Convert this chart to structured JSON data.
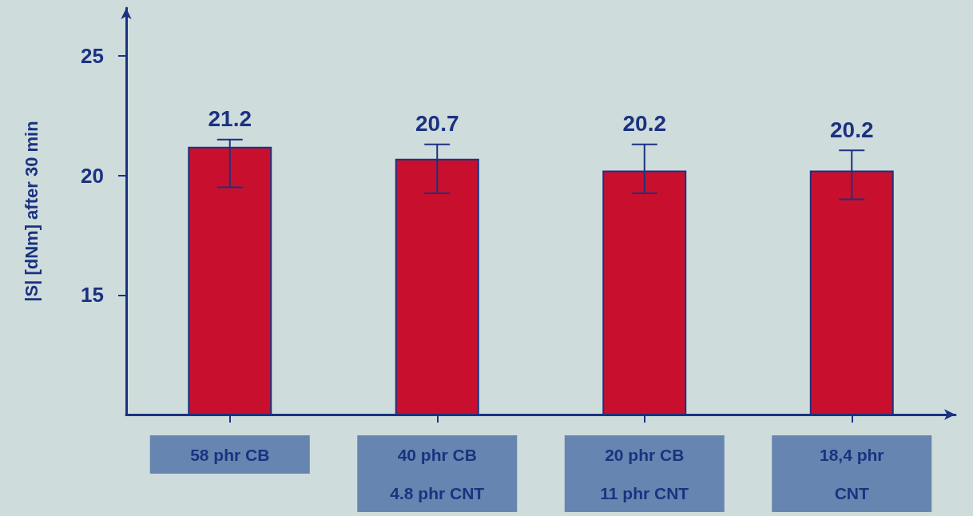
{
  "chart_data": {
    "type": "bar",
    "ylabel": "|S| [dNm] after 30 min",
    "categories": [
      "58 phr CB",
      "40 phr CB\n4.8 phr CNT",
      "20 phr CB\n11 phr CNT",
      "18,4 phr\nCNT"
    ],
    "values": [
      21.2,
      20.7,
      20.2,
      20.2
    ],
    "errors": [
      [
        19.5,
        21.5
      ],
      [
        19.25,
        21.3
      ],
      [
        19.25,
        21.3
      ],
      [
        19.0,
        21.05
      ]
    ],
    "color": "#c8102e",
    "data_labels": true,
    "ylim": [
      10,
      27
    ],
    "yticks": [
      15,
      20,
      25
    ],
    "grid": false
  }
}
